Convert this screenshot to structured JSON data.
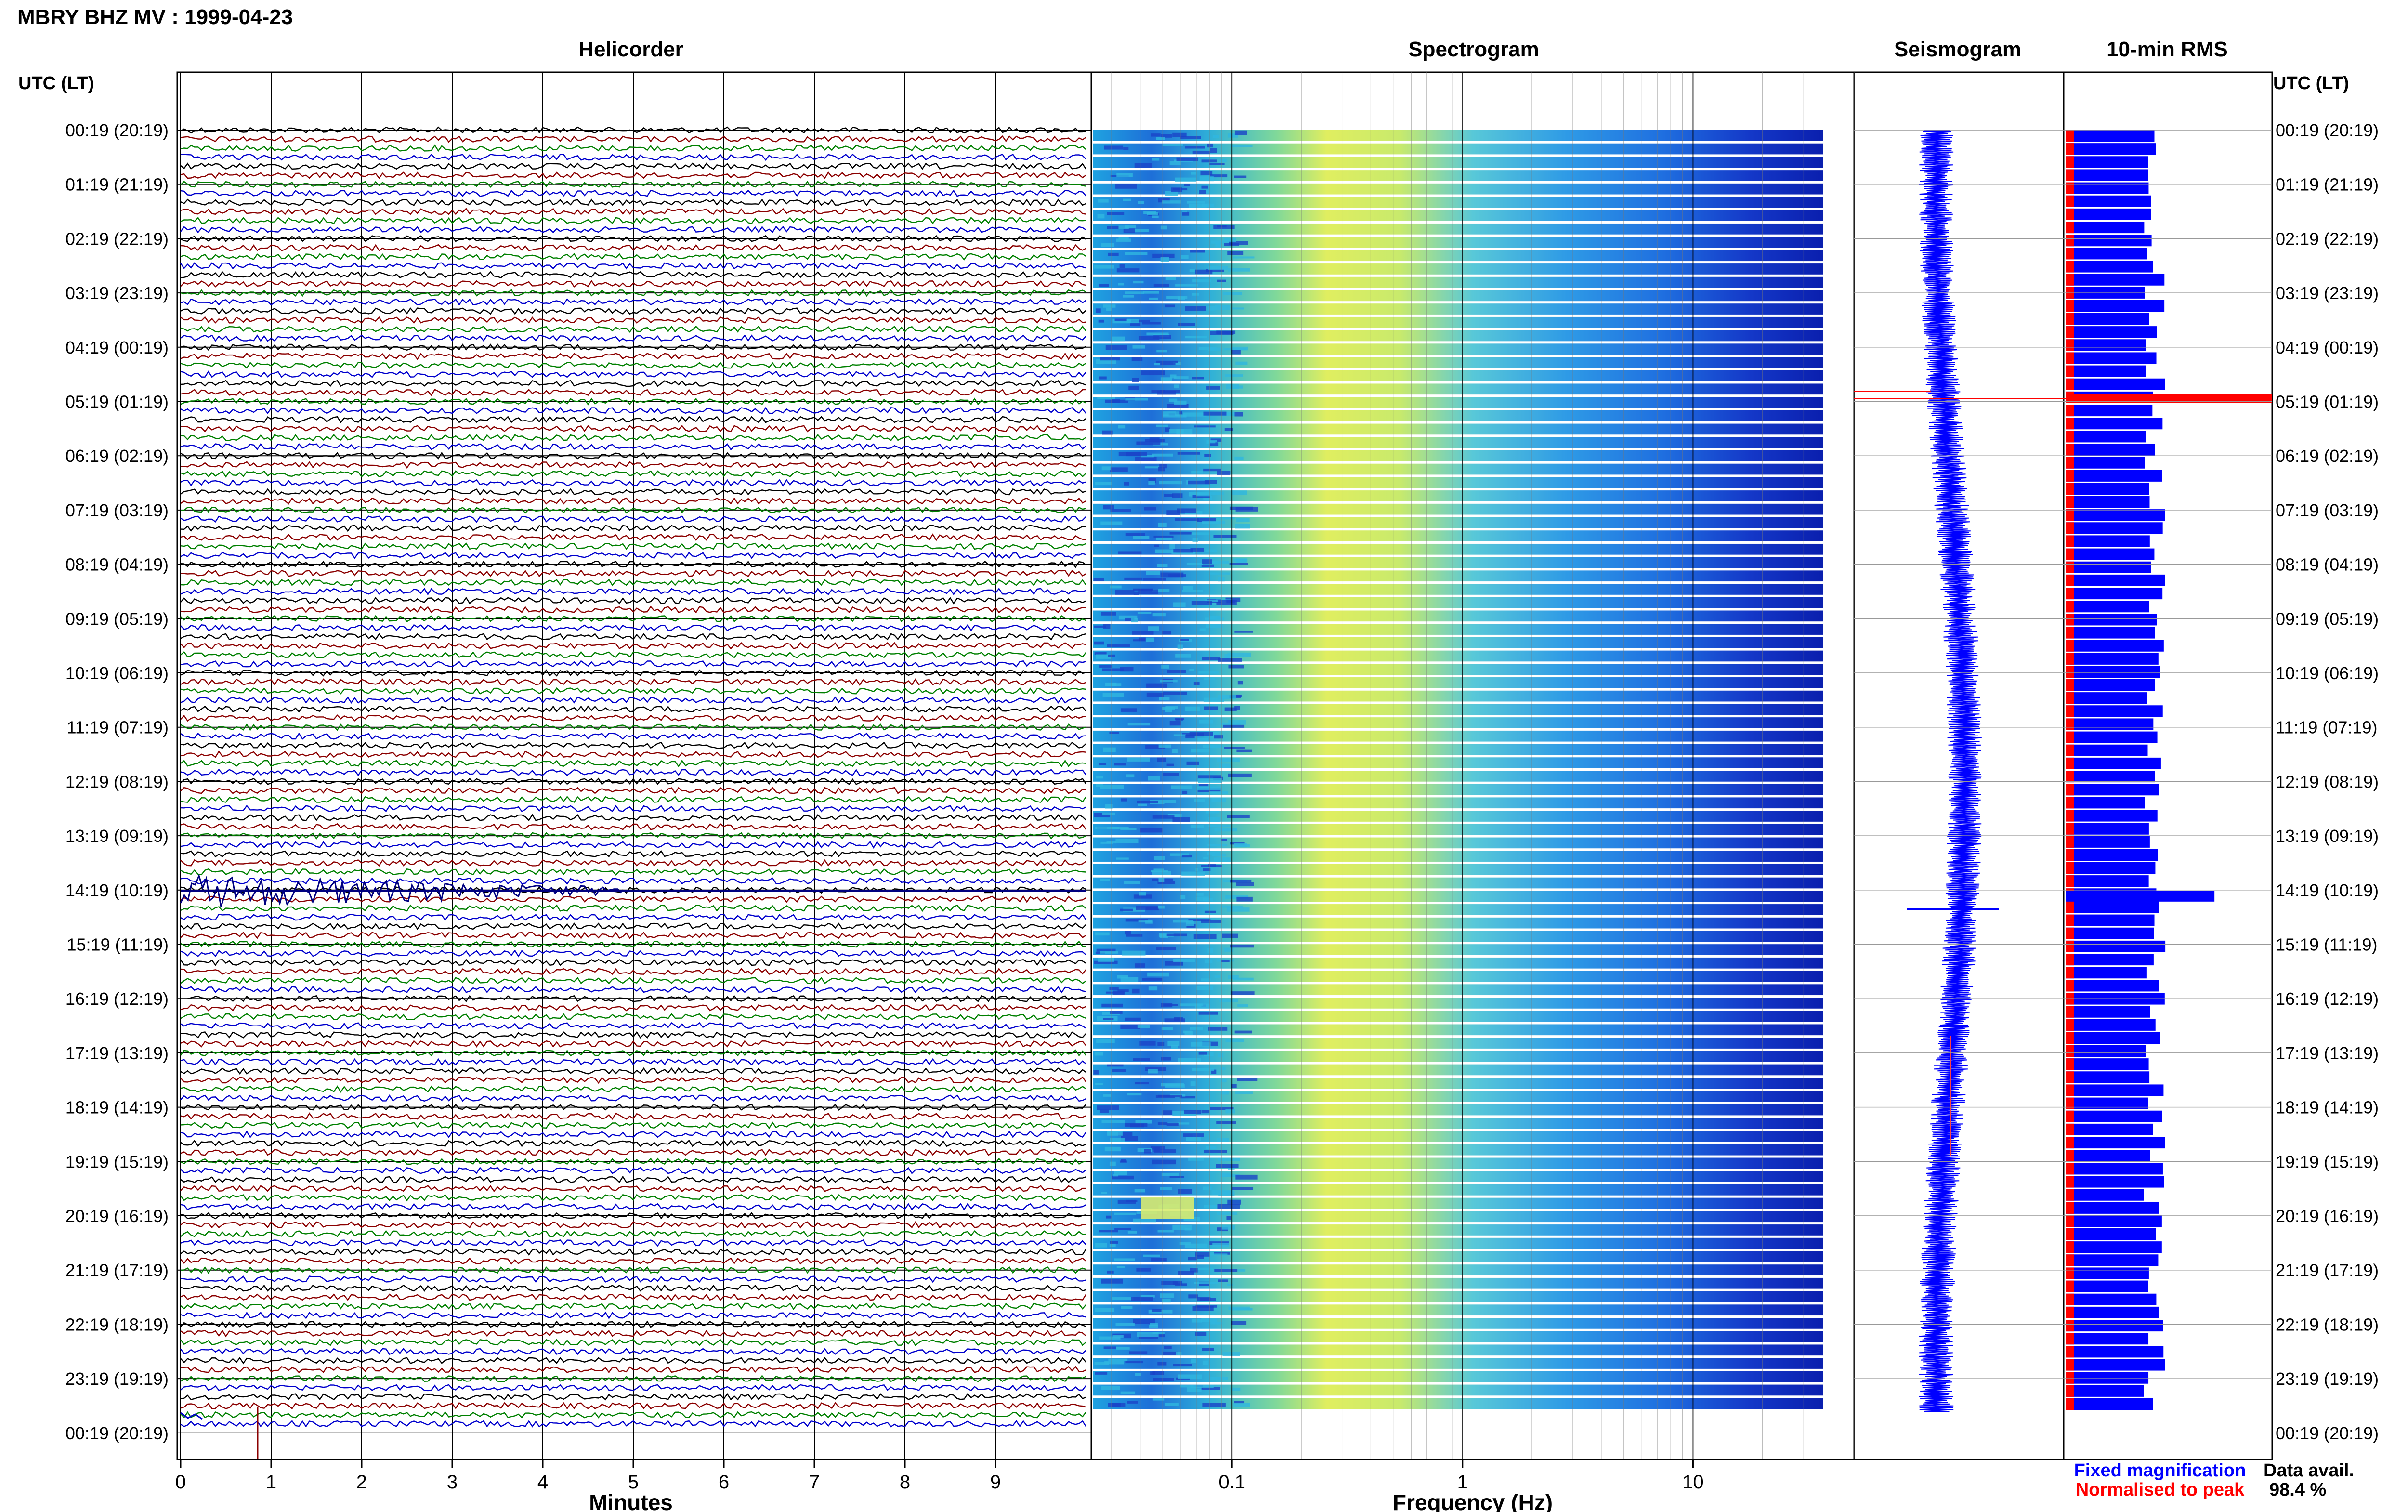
{
  "chart_data": {
    "type": "heatmap",
    "title": "MBRY BHZ MV : 1999-04-23",
    "panels": {
      "helicorder": "Helicorder",
      "spectrogram": "Spectrogram",
      "seismogram": "Seismogram",
      "rms": "10-min RMS"
    },
    "time_axis_label": "UTC (LT)",
    "time_ticks": [
      "00:19 (20:19)",
      "01:19 (21:19)",
      "02:19 (22:19)",
      "03:19 (23:19)",
      "04:19 (00:19)",
      "05:19 (01:19)",
      "06:19 (02:19)",
      "07:19 (03:19)",
      "08:19 (04:19)",
      "09:19 (05:19)",
      "10:19 (06:19)",
      "11:19 (07:19)",
      "12:19 (08:19)",
      "13:19 (09:19)",
      "14:19 (10:19)",
      "15:19 (11:19)",
      "16:19 (12:19)",
      "17:19 (13:19)",
      "18:19 (14:19)",
      "19:19 (15:19)",
      "20:19 (16:19)",
      "21:19 (17:19)",
      "22:19 (18:19)",
      "23:19 (19:19)",
      "00:19 (20:19)"
    ],
    "minutes_axis": {
      "label": "Minutes",
      "ticks": [
        "0",
        "1",
        "2",
        "3",
        "4",
        "5",
        "6",
        "7",
        "8",
        "9"
      ],
      "range": [
        0,
        10
      ]
    },
    "frequency_axis": {
      "label": "Frequency (Hz)",
      "ticks": [
        "0.1",
        "1",
        "10"
      ],
      "scale": "log",
      "range": [
        0.025,
        50
      ]
    },
    "helicorder_trace_colors": [
      "#000000",
      "#8b0000",
      "#008000",
      "#0000cd"
    ],
    "rows_per_hour": 6,
    "rows": 144,
    "events": [
      {
        "time": "05:19 (01:19)",
        "rms_relative": 1.0,
        "note": "data gap spike, normalised peak"
      },
      {
        "time": "14:19 (10:19)",
        "rms_relative": 0.72,
        "note": "seismic event"
      }
    ],
    "rms_relative_typical": 0.42,
    "legend": {
      "fixed": "Fixed magnification",
      "normalised": "Normalised to peak",
      "fixed_color": "#0000ff",
      "normalised_color": "#ff0000"
    },
    "data_availability": {
      "label": "Data avail.",
      "value": "98.4 %"
    }
  }
}
